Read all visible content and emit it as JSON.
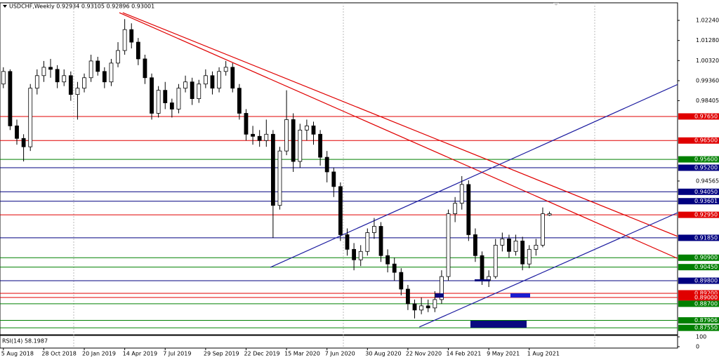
{
  "chart_data": {
    "type": "candlestick",
    "title": "USDCHF,Weekly  0.92934 0.93105 0.92896 0.93001",
    "up_color": "#ffffff",
    "down_color": "#000000",
    "categories": [
      "5 Aug 2018",
      null,
      null,
      null,
      null,
      null,
      "28 Oct 2018",
      null,
      null,
      null,
      null,
      null,
      "20 Jan 2019",
      null,
      null,
      null,
      null,
      null,
      "14 Apr 2019",
      null,
      null,
      null,
      null,
      null,
      "7 Jul 2019",
      null,
      null,
      null,
      null,
      null,
      "29 Sep 2019",
      null,
      null,
      null,
      null,
      null,
      "22 Dec 2019",
      null,
      null,
      null,
      null,
      null,
      "15 Mar 2020",
      null,
      null,
      null,
      null,
      null,
      "7 Jun 2020",
      null,
      null,
      null,
      null,
      null,
      "30 Aug 2020",
      null,
      null,
      null,
      null,
      null,
      "22 Nov 2020",
      null,
      null,
      null,
      null,
      null,
      "14 Feb 2021",
      null,
      null,
      null,
      null,
      null,
      "9 May 2021",
      null,
      null,
      null,
      null,
      null,
      "1 Aug 2021",
      null,
      null,
      null
    ],
    "ohlc": [
      [
        0.992,
        1.0,
        0.99,
        0.998
      ],
      [
        0.998,
        0.999,
        0.97,
        0.972
      ],
      [
        0.972,
        0.975,
        0.963,
        0.966
      ],
      [
        0.966,
        0.968,
        0.955,
        0.962
      ],
      [
        0.962,
        0.992,
        0.96,
        0.99
      ],
      [
        0.99,
        0.999,
        0.987,
        0.996
      ],
      [
        0.996,
        1.003,
        0.993,
        1.0
      ],
      [
        1.0,
        1.004,
        0.995,
        0.999
      ],
      [
        0.999,
        1.001,
        0.99,
        0.993
      ],
      [
        0.993,
        0.999,
        0.991,
        0.996
      ],
      [
        0.996,
        0.998,
        0.984,
        0.987
      ],
      [
        0.987,
        0.993,
        0.975,
        0.99
      ],
      [
        0.99,
        0.997,
        0.988,
        0.995
      ],
      [
        0.995,
        1.006,
        0.993,
        1.003
      ],
      [
        1.003,
        1.005,
        0.996,
        0.998
      ],
      [
        0.998,
        1.0,
        0.99,
        0.993
      ],
      [
        0.993,
        1.004,
        0.991,
        1.002
      ],
      [
        1.002,
        1.012,
        1.0,
        1.008
      ],
      [
        1.008,
        1.023,
        1.006,
        1.018
      ],
      [
        1.018,
        1.021,
        1.009,
        1.012
      ],
      [
        1.012,
        1.014,
        1.001,
        1.004
      ],
      [
        1.004,
        1.006,
        0.992,
        0.995
      ],
      [
        0.995,
        0.997,
        0.975,
        0.978
      ],
      [
        0.978,
        0.991,
        0.976,
        0.989
      ],
      [
        0.989,
        0.993,
        0.98,
        0.983
      ],
      [
        0.983,
        0.985,
        0.976,
        0.98
      ],
      [
        0.98,
        0.992,
        0.978,
        0.99
      ],
      [
        0.99,
        0.996,
        0.988,
        0.993
      ],
      [
        0.993,
        0.995,
        0.982,
        0.985
      ],
      [
        0.985,
        0.994,
        0.983,
        0.992
      ],
      [
        0.992,
        0.999,
        0.99,
        0.996
      ],
      [
        0.996,
        0.998,
        0.987,
        0.99
      ],
      [
        0.99,
        1.0,
        0.988,
        0.998
      ],
      [
        0.998,
        1.003,
        0.996,
        1.0
      ],
      [
        1.0,
        1.002,
        0.988,
        0.99
      ],
      [
        0.99,
        0.992,
        0.975,
        0.978
      ],
      [
        0.978,
        0.98,
        0.965,
        0.968
      ],
      [
        0.968,
        0.972,
        0.963,
        0.967
      ],
      [
        0.967,
        0.97,
        0.962,
        0.965
      ],
      [
        0.965,
        0.975,
        0.962,
        0.968
      ],
      [
        0.968,
        0.97,
        0.9185,
        0.934
      ],
      [
        0.934,
        0.962,
        0.932,
        0.96
      ],
      [
        0.96,
        0.989,
        0.958,
        0.975
      ],
      [
        0.975,
        0.978,
        0.95,
        0.955
      ],
      [
        0.955,
        0.973,
        0.952,
        0.97
      ],
      [
        0.97,
        0.975,
        0.965,
        0.972
      ],
      [
        0.972,
        0.974,
        0.963,
        0.968
      ],
      [
        0.968,
        0.97,
        0.953,
        0.957
      ],
      [
        0.957,
        0.96,
        0.945,
        0.95
      ],
      [
        0.95,
        0.952,
        0.938,
        0.943
      ],
      [
        0.943,
        0.945,
        0.917,
        0.92
      ],
      [
        0.92,
        0.923,
        0.91,
        0.913
      ],
      [
        0.913,
        0.916,
        0.903,
        0.908
      ],
      [
        0.908,
        0.915,
        0.905,
        0.912
      ],
      [
        0.912,
        0.923,
        0.91,
        0.921
      ],
      [
        0.921,
        0.928,
        0.918,
        0.924
      ],
      [
        0.924,
        0.926,
        0.907,
        0.91
      ],
      [
        0.91,
        0.913,
        0.902,
        0.906
      ],
      [
        0.906,
        0.909,
        0.898,
        0.902
      ],
      [
        0.902,
        0.904,
        0.891,
        0.894
      ],
      [
        0.894,
        0.896,
        0.884,
        0.887
      ],
      [
        0.887,
        0.889,
        0.88,
        0.884
      ],
      [
        0.884,
        0.89,
        0.882,
        0.886
      ],
      [
        0.886,
        0.889,
        0.883,
        0.885
      ],
      [
        0.885,
        0.893,
        0.883,
        0.889
      ],
      [
        0.889,
        0.903,
        0.887,
        0.9
      ],
      [
        0.9,
        0.932,
        0.898,
        0.93
      ],
      [
        0.93,
        0.938,
        0.926,
        0.935
      ],
      [
        0.935,
        0.948,
        0.932,
        0.944
      ],
      [
        0.944,
        0.946,
        0.917,
        0.92
      ],
      [
        0.92,
        0.923,
        0.907,
        0.91
      ],
      [
        0.91,
        0.912,
        0.896,
        0.898
      ],
      [
        0.898,
        0.903,
        0.895,
        0.9
      ],
      [
        0.9,
        0.918,
        0.899,
        0.915
      ],
      [
        0.915,
        0.921,
        0.912,
        0.918
      ],
      [
        0.918,
        0.92,
        0.909,
        0.912
      ],
      [
        0.912,
        0.92,
        0.91,
        0.917
      ],
      [
        0.917,
        0.919,
        0.903,
        0.906
      ],
      [
        0.906,
        0.915,
        0.904,
        0.913
      ],
      [
        0.913,
        0.918,
        0.91,
        0.915
      ],
      [
        0.915,
        0.933,
        0.914,
        0.93
      ],
      [
        0.92934,
        0.93105,
        0.92896,
        0.93001
      ]
    ],
    "xlim": [
      -0.5,
      100
    ],
    "ylim": [
      0.8722,
      1.0308
    ],
    "yticks": [
      {
        "value": 1.0224,
        "label": "1.02240"
      },
      {
        "value": 1.0128,
        "label": "1.01280"
      },
      {
        "value": 1.0032,
        "label": "1.00320"
      },
      {
        "value": 0.9936,
        "label": "0.99360"
      },
      {
        "value": 0.98405,
        "label": "0.98405"
      },
      {
        "value": 0.94565,
        "label": "0.94565"
      }
    ],
    "levels": [
      {
        "value": 0.9765,
        "label": "0.97650",
        "color": "#e00000"
      },
      {
        "value": 0.965,
        "label": "0.96500",
        "color": "#e00000"
      },
      {
        "value": 0.956,
        "label": "0.95600",
        "color": "#008000"
      },
      {
        "value": 0.952,
        "label": "0.95200",
        "color": "#000080"
      },
      {
        "value": 0.9405,
        "label": "0.94050",
        "color": "#000080"
      },
      {
        "value": 0.93601,
        "label": "0.93601",
        "color": "#000080"
      },
      {
        "value": 0.9295,
        "label": "0.92950",
        "color": "#e00000"
      },
      {
        "value": 0.9185,
        "label": "0.91850",
        "color": "#000080"
      },
      {
        "value": 0.909,
        "label": "0.90900",
        "color": "#008000"
      },
      {
        "value": 0.9045,
        "label": "0.90450",
        "color": "#008000"
      },
      {
        "value": 0.898,
        "label": "0.89800",
        "color": "#000080"
      },
      {
        "value": 0.892,
        "label": "0.89200",
        "color": "#e00000"
      },
      {
        "value": 0.89,
        "label": "0.89000",
        "color": "#e00000"
      },
      {
        "value": 0.887,
        "label": "0.88700",
        "color": "#008000"
      },
      {
        "value": 0.87906,
        "label": "0.87906",
        "color": "#008000"
      },
      {
        "value": 0.8755,
        "label": "0.87550",
        "color": "#008000"
      }
    ],
    "trendlines": [
      {
        "color": "#e00000",
        "x": [
          17.2,
          104.7
        ],
        "y": [
          1.0261,
          0.902
        ]
      },
      {
        "color": "#e00000",
        "x": [
          17.7,
          104.7
        ],
        "y": [
          1.0261,
          0.9131
        ]
      },
      {
        "color": "#1c1ca0",
        "x": [
          39.6,
          105.2
        ],
        "y": [
          0.9044,
          0.9993
        ]
      },
      {
        "color": "#1c1ca0",
        "x": [
          61.7,
          104.7
        ],
        "y": [
          0.8759,
          0.9372
        ]
      }
    ],
    "rsi_label": "RSI(14) 58.1987",
    "rsi_ylim": [
      0,
      100
    ],
    "rsi_yticks": [
      100,
      0
    ]
  }
}
